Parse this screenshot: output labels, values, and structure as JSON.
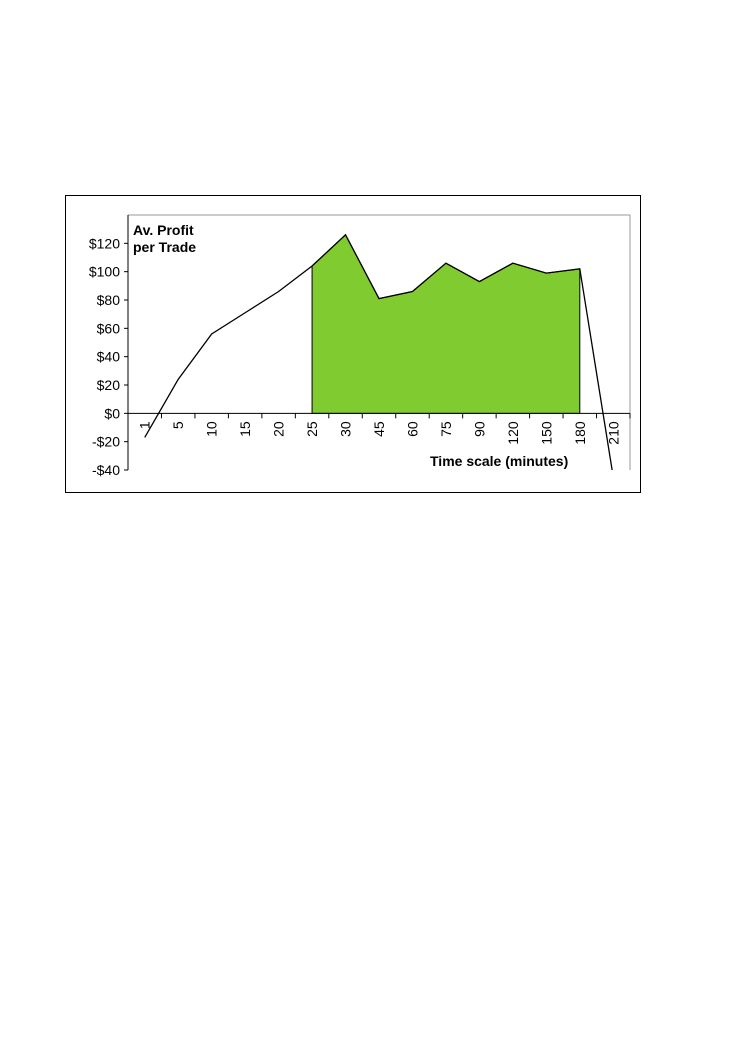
{
  "chart_data": {
    "type": "line",
    "ylabel": "Av. Profit per Trade",
    "xlabel": "Time scale (minutes)",
    "categories": [
      "1",
      "5",
      "10",
      "15",
      "20",
      "25",
      "30",
      "45",
      "60",
      "75",
      "90",
      "120",
      "150",
      "180",
      "210"
    ],
    "series": [
      {
        "type": "line",
        "color": "#000000",
        "values": [
          -17,
          24,
          56,
          71,
          86,
          104,
          126,
          81,
          86,
          106,
          93,
          106,
          99,
          102,
          -45
        ]
      },
      {
        "type": "area",
        "color": "#80cc30",
        "values": [
          null,
          null,
          null,
          null,
          null,
          104,
          126,
          81,
          86,
          106,
          93,
          106,
          99,
          102,
          null
        ]
      }
    ],
    "ylim": [
      -40,
      140
    ],
    "yticks": [
      {
        "value": -40,
        "label": "-$40"
      },
      {
        "value": -20,
        "label": "-$20"
      },
      {
        "value": 0,
        "label": "$0"
      },
      {
        "value": 20,
        "label": "$20"
      },
      {
        "value": 40,
        "label": "$40"
      },
      {
        "value": 60,
        "label": "$60"
      },
      {
        "value": 80,
        "label": "$80"
      },
      {
        "value": 100,
        "label": "$100"
      },
      {
        "value": 120,
        "label": "$120"
      }
    ]
  }
}
